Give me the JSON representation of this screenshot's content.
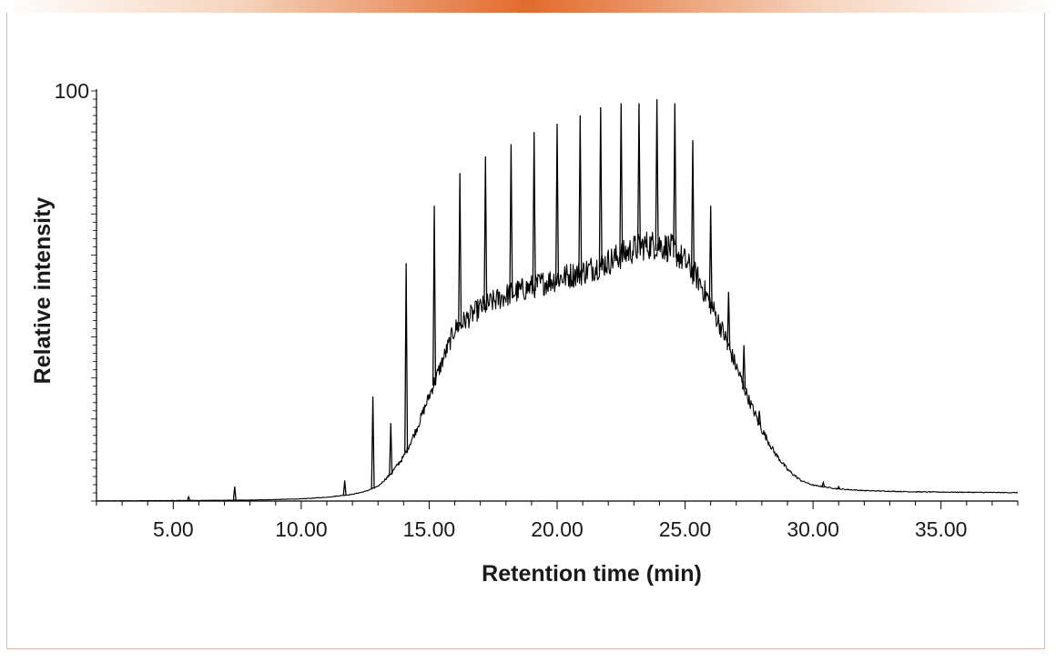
{
  "colors": {
    "accent": "#e26a2c",
    "frame": "#f0b49a",
    "trace": "#000000"
  },
  "chart_data": {
    "type": "line",
    "title": "",
    "xlabel": "Retention time (min)",
    "ylabel": "Relative intensity",
    "xlim": [
      2.0,
      38.0
    ],
    "ylim": [
      0,
      100
    ],
    "x_ticks": [
      5.0,
      10.0,
      15.0,
      20.0,
      25.0,
      30.0,
      35.0
    ],
    "x_tick_labels": [
      "5.00",
      "10.00",
      "15.00",
      "20.00",
      "25.00",
      "30.00",
      "35.00"
    ],
    "y_tick_labels": [
      "100"
    ],
    "grid": false,
    "series": [
      {
        "style": "baseline envelope",
        "x": [
          2.0,
          8.0,
          10.0,
          11.0,
          12.0,
          12.5,
          13.0,
          13.5,
          14.0,
          14.5,
          15.0,
          15.5,
          16.0,
          17.0,
          18.0,
          19.0,
          20.0,
          21.0,
          22.0,
          23.0,
          23.5,
          24.0,
          24.5,
          25.0,
          25.5,
          26.0,
          26.5,
          27.0,
          27.5,
          28.0,
          28.5,
          29.0,
          29.5,
          30.0,
          31.0,
          32.0,
          34.0,
          36.0,
          38.0
        ],
        "y": [
          0.0,
          0.2,
          0.5,
          0.9,
          1.6,
          2.3,
          3.5,
          6.5,
          10.5,
          17.0,
          25.0,
          33.0,
          41.0,
          46.0,
          49.0,
          51.0,
          53.0,
          54.5,
          57.0,
          60.0,
          61.0,
          61.0,
          60.0,
          57.0,
          53.0,
          47.0,
          40.0,
          32.0,
          24.0,
          17.0,
          11.5,
          7.5,
          5.0,
          3.8,
          2.9,
          2.5,
          2.2,
          2.1,
          2.0
        ]
      },
      {
        "style": "peaks",
        "x": [
          5.6,
          7.4,
          11.7,
          12.8,
          13.5,
          14.1,
          15.2,
          16.2,
          17.2,
          18.2,
          19.1,
          20.0,
          20.9,
          21.7,
          22.5,
          23.2,
          23.9,
          24.6,
          25.3,
          26.0,
          26.7,
          27.3,
          27.9,
          30.4,
          31.0
        ],
        "y": [
          1.0,
          3.5,
          5.0,
          25.5,
          19.0,
          58.0,
          72.0,
          80.0,
          84.0,
          87.0,
          90.0,
          92.0,
          94.0,
          96.0,
          97.0,
          97.0,
          98.0,
          97.0,
          88.0,
          72.0,
          51.0,
          38.0,
          22.0,
          4.5,
          3.5
        ]
      }
    ]
  }
}
